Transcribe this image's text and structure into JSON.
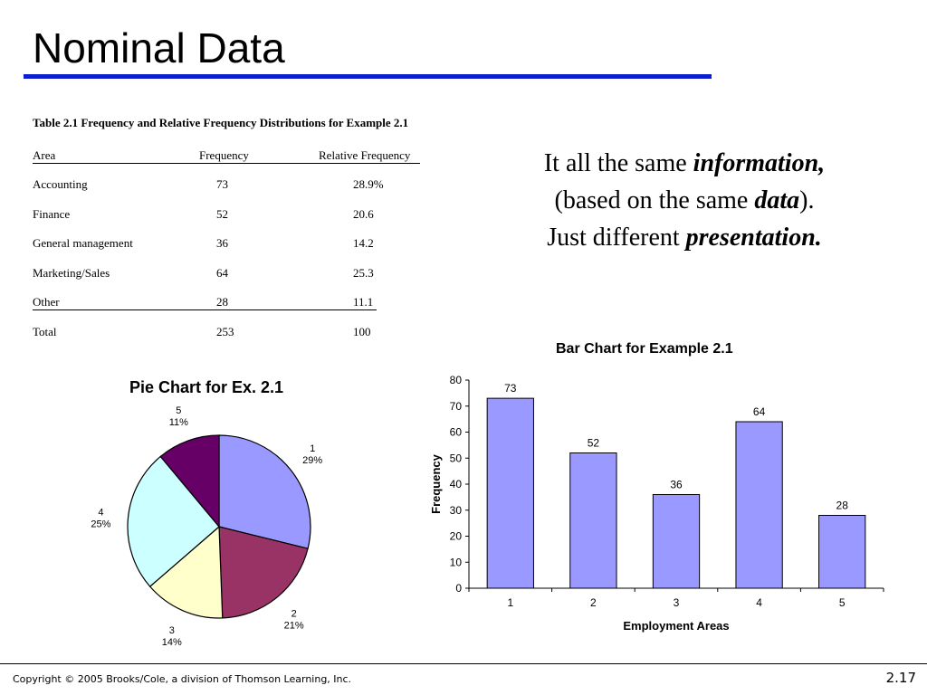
{
  "slide": {
    "title": "Nominal Data",
    "footer": "Copyright © 2005 Brooks/Cole, a division of Thomson Learning, Inc.",
    "number": "2.17"
  },
  "table": {
    "caption": "Table 2.1 Frequency and Relative Frequency Distributions for Example 2.1",
    "headers": [
      "Area",
      "Frequency",
      "Relative Frequency"
    ],
    "rows": [
      [
        "Accounting",
        "73",
        "28.9%"
      ],
      [
        "Finance",
        "52",
        "20.6"
      ],
      [
        "General management",
        "36",
        "14.2"
      ],
      [
        "Marketing/Sales",
        "64",
        "25.3"
      ],
      [
        "Other",
        "28",
        "11.1"
      ],
      [
        "Total",
        "253",
        "100"
      ]
    ]
  },
  "message": {
    "line1_plain": "It all the same ",
    "line1_emph": "information,",
    "line2_open": "(based on the same ",
    "line2_emph": "data",
    "line2_close": ").",
    "line3_plain": "Just different ",
    "line3_emph": "presentation."
  },
  "colors": {
    "title_rule": "#0b1fd0",
    "bar_fill": "#9999ff",
    "pie_slices": [
      "#9999ff",
      "#993366",
      "#ffffcc",
      "#ccffff",
      "#660066"
    ]
  },
  "chart_data": [
    {
      "type": "pie",
      "title": "Pie Chart for Ex. 2.1",
      "categories": [
        "1",
        "2",
        "3",
        "4",
        "5"
      ],
      "values": [
        73,
        52,
        36,
        64,
        28
      ],
      "labels": [
        "29%",
        "21%",
        "14%",
        "25%",
        "11%"
      ]
    },
    {
      "type": "bar",
      "title": "Bar Chart for Example 2.1",
      "xlabel": "Employment Areas",
      "ylabel": "Frequency",
      "categories": [
        "1",
        "2",
        "3",
        "4",
        "5"
      ],
      "values": [
        73,
        52,
        36,
        64,
        28
      ],
      "ylim": [
        0,
        80
      ],
      "yticks": [
        "0",
        "10",
        "20",
        "30",
        "40",
        "50",
        "60",
        "70",
        "80"
      ],
      "grid": false,
      "legend": "none"
    }
  ]
}
